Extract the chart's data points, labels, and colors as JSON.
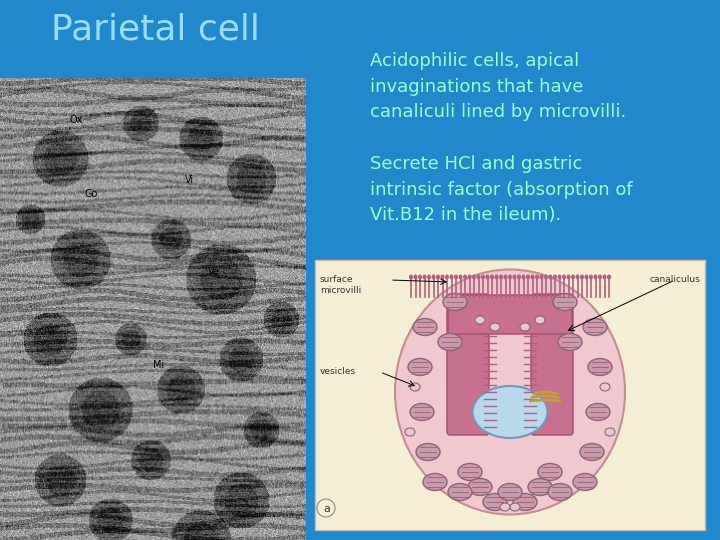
{
  "background_color": "#2288cc",
  "title_text": "Parietal cell",
  "title_color": "#99ddff",
  "title_fontsize": 26,
  "text1": "Acidophilic cells, apical\ninvaginations that have\ncanaliculi lined by microvilli.",
  "text2": "Secrete HCl and gastric\nintrinsic factor (absorption of\nVit.B12 in the ileum).",
  "text_color": "#99ffcc",
  "text_fontsize": 13,
  "diagram_bg": "#f5eed5",
  "diagram_border": "#ccbbaa",
  "cell_outer_fill": "#f0c8d0",
  "cell_outer_edge": "#c09090",
  "canaliculus_fill": "#c87090",
  "canaliculus_edge": "#a05070",
  "microvilli_color": "#b06080",
  "nucleus_fill": "#b8d8ee",
  "nucleus_edge": "#7099bb",
  "mito_fill": "#cc99aa",
  "mito_edge": "#886677",
  "golgi_color": "#c0a030",
  "vesicle_fill": "#e8c8d0",
  "vesicle_edge": "#aa8888",
  "label_color": "#333333",
  "em_label_color": "#000000"
}
